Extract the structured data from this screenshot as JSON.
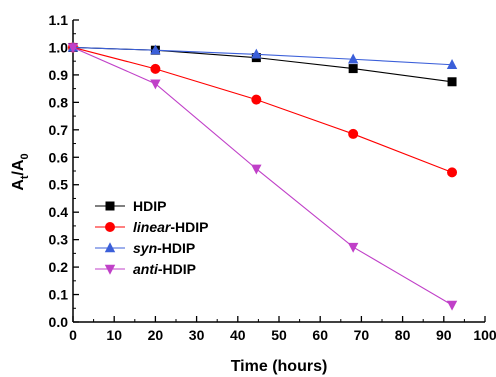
{
  "chart_data": {
    "type": "line",
    "xlabel": "Time (hours)",
    "ylabel": {
      "main": "A",
      "sub1": "t",
      "sep": "/A",
      "sub2": "0"
    },
    "xlim": [
      0,
      100
    ],
    "ylim": [
      0.0,
      1.1
    ],
    "xticks": [
      0,
      10,
      20,
      30,
      40,
      50,
      60,
      70,
      80,
      90,
      100
    ],
    "yticks": [
      0.0,
      0.1,
      0.2,
      0.3,
      0.4,
      0.5,
      0.6,
      0.7,
      0.8,
      0.9,
      1.0,
      1.1
    ],
    "ytick_labels": [
      "0.0",
      "0.1",
      "0.2",
      "0.3",
      "0.4",
      "0.5",
      "0.6",
      "0.7",
      "0.8",
      "0.9",
      "1.0",
      "1.1"
    ],
    "grid": false,
    "legend_position": "lower-left",
    "series": [
      {
        "name_prefix": "",
        "name_rest": "HDIP",
        "color": "#000000",
        "marker": "square",
        "x": [
          0,
          20,
          44.5,
          68,
          92
        ],
        "y": [
          1.0,
          0.99,
          0.963,
          0.923,
          0.875
        ]
      },
      {
        "name_prefix": "linear",
        "name_rest": "-HDIP",
        "color": "#ff0000",
        "marker": "circle",
        "x": [
          0,
          20,
          44.5,
          68,
          92
        ],
        "y": [
          1.0,
          0.922,
          0.81,
          0.685,
          0.545
        ]
      },
      {
        "name_prefix": "syn",
        "name_rest": "-HDIP",
        "color": "#3b5fd9",
        "marker": "triangle-up",
        "x": [
          0,
          20,
          44.5,
          68,
          92
        ],
        "y": [
          1.0,
          0.99,
          0.975,
          0.957,
          0.937
        ]
      },
      {
        "name_prefix": "anti",
        "name_rest": "-HDIP",
        "color": "#c040c8",
        "marker": "triangle-down",
        "x": [
          0,
          20,
          44.5,
          68,
          92
        ],
        "y": [
          1.0,
          0.868,
          0.558,
          0.273,
          0.062
        ]
      }
    ]
  }
}
